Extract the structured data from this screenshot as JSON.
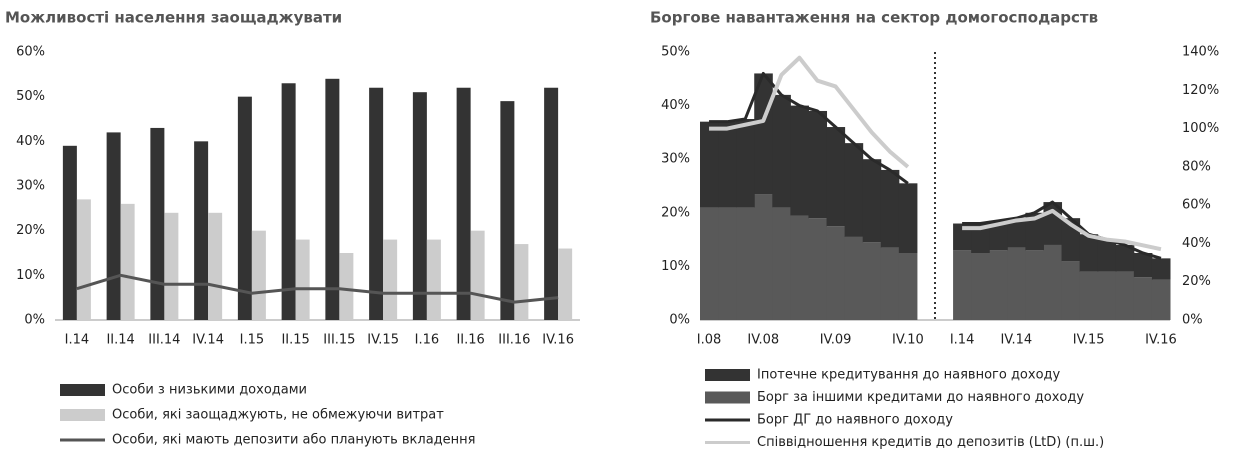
{
  "chart_data": [
    {
      "type": "bar",
      "title": "Можливості населення заощаджувати",
      "categories": [
        "I.14",
        "II.14",
        "III.14",
        "IV.14",
        "I.15",
        "II.15",
        "III.15",
        "IV.15",
        "I.16",
        "II.16",
        "III.16",
        "IV.16"
      ],
      "series": [
        {
          "name": "Особи з низькими доходами",
          "type": "bar",
          "color": "#333333",
          "values": [
            39,
            42,
            43,
            40,
            50,
            53,
            54,
            52,
            51,
            52,
            49,
            52
          ]
        },
        {
          "name": "Особи, які заощаджують, не обмежуючи витрат",
          "type": "bar",
          "color": "#cccccc",
          "values": [
            27,
            26,
            24,
            24,
            20,
            18,
            15,
            18,
            18,
            20,
            17,
            16
          ]
        },
        {
          "name": "Особи, які мають депозити або планують вкладення",
          "type": "line",
          "color": "#555555",
          "values": [
            7,
            10,
            8,
            8,
            6,
            7,
            7,
            6,
            6,
            6,
            4,
            5
          ]
        }
      ],
      "ylim": [
        0,
        60
      ],
      "yticks": [
        {
          "value": 0,
          "label": "0%"
        },
        {
          "value": 10,
          "label": "10%"
        },
        {
          "value": 20,
          "label": "20%"
        },
        {
          "value": 30,
          "label": "30%"
        },
        {
          "value": 40,
          "label": "40%"
        },
        {
          "value": 50,
          "label": "50%"
        },
        {
          "value": 60,
          "label": "60%"
        }
      ]
    },
    {
      "type": "area",
      "title": "Боргове навантаження на сектор домогосподарств",
      "categories": [
        "I.08",
        null,
        null,
        "IV.08",
        null,
        null,
        null,
        "IV.09",
        null,
        null,
        null,
        "IV.10",
        null,
        null,
        "I.14",
        null,
        null,
        "IV.14",
        null,
        null,
        null,
        "IV.15",
        null,
        null,
        null,
        "IV.16"
      ],
      "series": [
        {
          "name": "Іпотечне кредитування до наявного доходу",
          "type": "area",
          "color": "#333333",
          "values": [
            16,
            16,
            16.5,
            22.5,
            21,
            20.5,
            20,
            18.5,
            17.5,
            15.5,
            14.5,
            13,
            null,
            null,
            5,
            5.5,
            5.5,
            5.5,
            7,
            8,
            8,
            7,
            6,
            5,
            4.5,
            4
          ]
        },
        {
          "name": "Борг за іншими кредитами до наявного доходу",
          "type": "area",
          "color": "#595959",
          "values": [
            21,
            21,
            21,
            23.5,
            21,
            19.5,
            19,
            17.5,
            15.5,
            14.5,
            13.5,
            12.5,
            null,
            null,
            13,
            12.5,
            13,
            13.5,
            13,
            14,
            11,
            9,
            9,
            9,
            8,
            7.5
          ]
        },
        {
          "name": "Борг ДГ до наявного доходу",
          "type": "line",
          "color": "#2a2a2a",
          "values": [
            37,
            37,
            37.5,
            46,
            42,
            40,
            39,
            36,
            33,
            30,
            28,
            25.5,
            null,
            null,
            18,
            18,
            18.5,
            19,
            20,
            22,
            19,
            16,
            15,
            14,
            12.5,
            11.5
          ]
        },
        {
          "name": "Співвідношення кредитів до депозитів (LtD) (п.ш.)",
          "type": "line",
          "axis": "y2",
          "color": "#cccccc",
          "values": [
            100,
            100,
            102,
            104,
            128,
            137,
            125,
            122,
            110,
            98,
            88,
            80,
            null,
            null,
            48,
            48,
            50,
            52,
            53,
            57,
            50,
            44,
            42,
            41,
            39,
            37
          ]
        }
      ],
      "ylim": [
        0,
        50
      ],
      "yticks": [
        {
          "value": 0,
          "label": "0%"
        },
        {
          "value": 10,
          "label": "10%"
        },
        {
          "value": 20,
          "label": "20%"
        },
        {
          "value": 30,
          "label": "30%"
        },
        {
          "value": 40,
          "label": "40%"
        },
        {
          "value": 50,
          "label": "50%"
        }
      ],
      "y2lim": [
        0,
        140
      ],
      "y2ticks": [
        {
          "value": 0,
          "label": "0%"
        },
        {
          "value": 20,
          "label": "20%"
        },
        {
          "value": 40,
          "label": "40%"
        },
        {
          "value": 60,
          "label": "60%"
        },
        {
          "value": 80,
          "label": "80%"
        },
        {
          "value": 100,
          "label": "100%"
        },
        {
          "value": 120,
          "label": "120%"
        },
        {
          "value": 140,
          "label": "140%"
        }
      ]
    }
  ]
}
